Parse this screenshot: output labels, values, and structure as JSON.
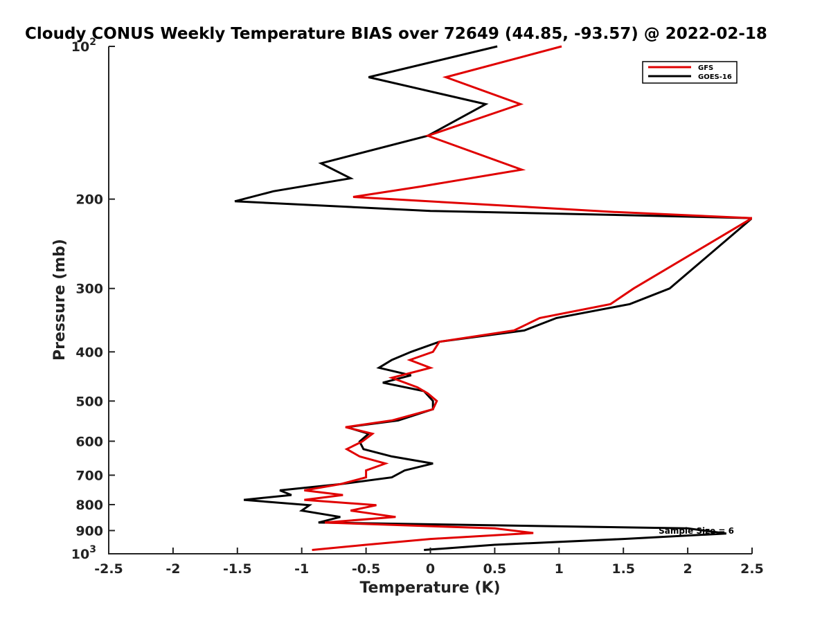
{
  "chart_data": {
    "type": "line",
    "title": "Cloudy CONUS Weekly Temperature BIAS over 72649 (44.85, -93.57) @ 2022-02-18",
    "xlabel": "Temperature (K)",
    "ylabel": "Pressure (mb)",
    "xlim": [
      -2.5,
      2.5
    ],
    "ylim": [
      100,
      1000
    ],
    "y_scale": "log",
    "y_reversed": true,
    "grid": false,
    "legend_position": "top-right",
    "x_ticks": [
      "-2.5",
      "-2",
      "-1.5",
      "-1",
      "-0.5",
      "0",
      "0.5",
      "1",
      "1.5",
      "2",
      "2.5"
    ],
    "x_tick_values": [
      -2.5,
      -2,
      -1.5,
      -1,
      -0.5,
      0,
      0.5,
      1,
      1.5,
      2,
      2.5
    ],
    "y_ticks": [
      {
        "value": 100,
        "label": "10",
        "sup": "2"
      },
      {
        "value": 200,
        "label": "200",
        "sup": ""
      },
      {
        "value": 300,
        "label": "300",
        "sup": ""
      },
      {
        "value": 400,
        "label": "400",
        "sup": ""
      },
      {
        "value": 500,
        "label": "500",
        "sup": ""
      },
      {
        "value": 600,
        "label": "600",
        "sup": ""
      },
      {
        "value": 700,
        "label": "700",
        "sup": ""
      },
      {
        "value": 800,
        "label": "800",
        "sup": ""
      },
      {
        "value": 900,
        "label": "900",
        "sup": ""
      },
      {
        "value": 1000,
        "label": "10",
        "sup": "3"
      }
    ],
    "annotation": "Sample Size = 6",
    "series": [
      {
        "name": "GFS",
        "color": "#e00000",
        "points": [
          [
            1.02,
            100
          ],
          [
            0.12,
            115
          ],
          [
            0.7,
            130
          ],
          [
            -0.02,
            150
          ],
          [
            0.71,
            175
          ],
          [
            -0.08,
            189
          ],
          [
            -0.6,
            198
          ],
          [
            1.43,
            212
          ],
          [
            2.5,
            218
          ],
          [
            1.58,
            300
          ],
          [
            1.4,
            322
          ],
          [
            0.85,
            343
          ],
          [
            0.65,
            363
          ],
          [
            0.07,
            382
          ],
          [
            0.02,
            400
          ],
          [
            -0.16,
            415
          ],
          [
            0.0,
            430
          ],
          [
            -0.3,
            450
          ],
          [
            -0.1,
            470
          ],
          [
            -0.02,
            483
          ],
          [
            0.05,
            500
          ],
          [
            0.02,
            519
          ],
          [
            -0.3,
            546
          ],
          [
            -0.66,
            563
          ],
          [
            -0.45,
            580
          ],
          [
            -0.53,
            601
          ],
          [
            -0.65,
            622
          ],
          [
            -0.55,
            643
          ],
          [
            -0.35,
            664
          ],
          [
            -0.5,
            685
          ],
          [
            -0.5,
            707
          ],
          [
            -0.7,
            729
          ],
          [
            -0.98,
            750
          ],
          [
            -0.68,
            766
          ],
          [
            -0.98,
            783
          ],
          [
            -0.42,
            802
          ],
          [
            -0.62,
            822
          ],
          [
            -0.27,
            846
          ],
          [
            -0.82,
            868
          ],
          [
            0.5,
            891
          ],
          [
            0.8,
            910
          ],
          [
            0.0,
            935
          ],
          [
            -0.5,
            960
          ],
          [
            -0.92,
            983
          ]
        ]
      },
      {
        "name": "GOES-16",
        "color": "#000000",
        "points": [
          [
            0.52,
            100
          ],
          [
            -0.48,
            115
          ],
          [
            0.43,
            130
          ],
          [
            -0.02,
            150
          ],
          [
            -0.85,
            170
          ],
          [
            -0.62,
            182
          ],
          [
            -1.22,
            193
          ],
          [
            -1.52,
            202
          ],
          [
            0.0,
            211
          ],
          [
            1.5,
            215
          ],
          [
            2.5,
            218
          ],
          [
            1.86,
            300
          ],
          [
            1.55,
            322
          ],
          [
            0.98,
            343
          ],
          [
            0.73,
            363
          ],
          [
            0.07,
            382
          ],
          [
            -0.15,
            400
          ],
          [
            -0.3,
            415
          ],
          [
            -0.4,
            430
          ],
          [
            -0.15,
            445
          ],
          [
            -0.37,
            460
          ],
          [
            -0.05,
            478
          ],
          [
            0.02,
            500
          ],
          [
            0.02,
            519
          ],
          [
            -0.25,
            546
          ],
          [
            -0.65,
            563
          ],
          [
            -0.48,
            580
          ],
          [
            -0.55,
            601
          ],
          [
            -0.52,
            622
          ],
          [
            -0.3,
            643
          ],
          [
            0.02,
            664
          ],
          [
            -0.2,
            685
          ],
          [
            -0.3,
            707
          ],
          [
            -0.7,
            729
          ],
          [
            -1.17,
            750
          ],
          [
            -1.08,
            766
          ],
          [
            -1.45,
            783
          ],
          [
            -0.94,
            802
          ],
          [
            -1.0,
            822
          ],
          [
            -0.7,
            846
          ],
          [
            -0.87,
            868
          ],
          [
            2.0,
            891
          ],
          [
            2.3,
            912
          ],
          [
            1.5,
            935
          ],
          [
            0.5,
            960
          ],
          [
            -0.05,
            983
          ]
        ]
      }
    ]
  }
}
